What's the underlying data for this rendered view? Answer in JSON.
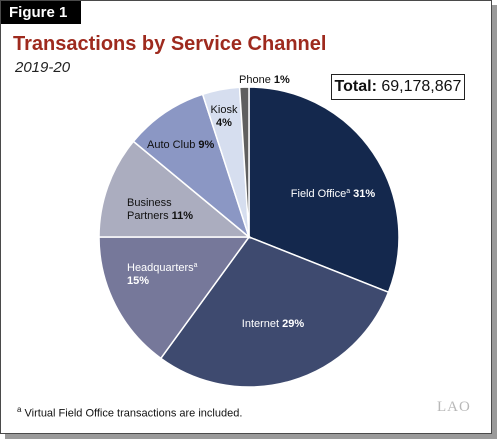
{
  "figure_tag": "Figure 1",
  "total": {
    "label": "Total:",
    "value": "69,178,867"
  },
  "footnote": {
    "marker": "a",
    "text": "Virtual Field Office transactions are included."
  },
  "logo_text": "LAO",
  "colors": {
    "title": "#9e2a1e",
    "field_office": "#14284d",
    "internet": "#3e4a6f",
    "headquarters": "#76789a",
    "business_partners": "#abadbf",
    "auto_club": "#8b97c4",
    "kiosk": "#d6deef",
    "phone": "#5f5f5f"
  },
  "chart_data": {
    "type": "pie",
    "title": "Transactions by Service Channel",
    "subtitle": "2019-20",
    "slices": [
      {
        "label": "Field Office",
        "sup": "a",
        "pct_text": "31%",
        "value": 31
      },
      {
        "label": "Internet",
        "sup": "",
        "pct_text": "29%",
        "value": 29
      },
      {
        "label": "Headquarters",
        "sup": "a",
        "pct_text": "15%",
        "value": 15
      },
      {
        "label": "Business Partners",
        "sup": "",
        "pct_text": "11%",
        "value": 11
      },
      {
        "label": "Auto Club",
        "sup": "",
        "pct_text": "9%",
        "value": 9
      },
      {
        "label": "Kiosk",
        "sup": "",
        "pct_text": "4%",
        "value": 4
      },
      {
        "label": "Phone",
        "sup": "",
        "pct_text": "1%",
        "value": 1
      }
    ]
  }
}
